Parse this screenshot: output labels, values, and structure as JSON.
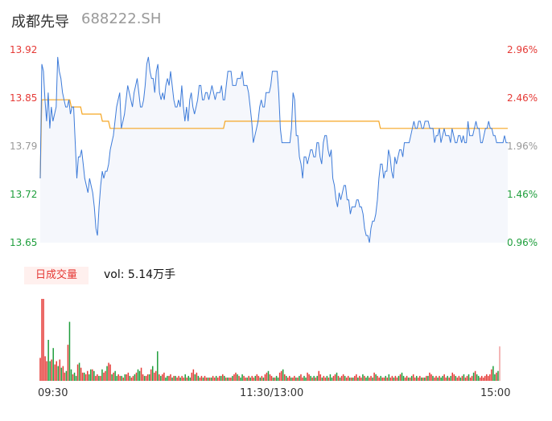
{
  "header": {
    "name": "成都先导",
    "code": "688222.SH"
  },
  "chart_data": {
    "type": "line",
    "price_axis": {
      "ticks": [
        "13.92",
        "13.85",
        "13.79",
        "13.72",
        "13.65"
      ],
      "range": [
        13.65,
        13.92
      ]
    },
    "pct_axis": {
      "ticks": [
        "2.96%",
        "2.46%",
        "1.96%",
        "1.46%",
        "0.96%"
      ]
    },
    "colors": {
      "up": "#e53935",
      "down": "#1e9e3c",
      "neutral": "#999999",
      "price_line": "#3d7bd9",
      "avg_line": "#f5a623"
    },
    "x_ticks": [
      "09:30",
      "11:30/13:00",
      "15:00"
    ],
    "price_series": [
      13.74,
      13.9,
      13.89,
      13.85,
      13.82,
      13.86,
      13.81,
      13.84,
      13.82,
      13.83,
      13.84,
      13.91,
      13.89,
      13.88,
      13.86,
      13.85,
      13.84,
      13.84,
      13.85,
      13.83,
      13.84,
      13.84,
      13.79,
      13.74,
      13.77,
      13.77,
      13.78,
      13.76,
      13.74,
      13.73,
      13.72,
      13.74,
      13.73,
      13.72,
      13.7,
      13.67,
      13.66,
      13.7,
      13.73,
      13.75,
      13.74,
      13.75,
      13.75,
      13.76,
      13.78,
      13.79,
      13.8,
      13.82,
      13.84,
      13.85,
      13.86,
      13.81,
      13.82,
      13.83,
      13.85,
      13.87,
      13.86,
      13.85,
      13.84,
      13.86,
      13.87,
      13.88,
      13.86,
      13.84,
      13.84,
      13.85,
      13.87,
      13.9,
      13.91,
      13.89,
      13.88,
      13.88,
      13.86,
      13.89,
      13.9,
      13.86,
      13.85,
      13.86,
      13.85,
      13.87,
      13.88,
      13.87,
      13.89,
      13.87,
      13.85,
      13.84,
      13.84,
      13.85,
      13.84,
      13.87,
      13.84,
      13.82,
      13.84,
      13.82,
      13.85,
      13.86,
      13.84,
      13.83,
      13.84,
      13.85,
      13.87,
      13.87,
      13.85,
      13.85,
      13.86,
      13.86,
      13.85,
      13.86,
      13.87,
      13.86,
      13.85,
      13.86,
      13.86,
      13.86,
      13.87,
      13.85,
      13.85,
      13.87,
      13.89,
      13.89,
      13.89,
      13.87,
      13.87,
      13.87,
      13.88,
      13.88,
      13.88,
      13.89,
      13.87,
      13.87,
      13.87,
      13.86,
      13.84,
      13.82,
      13.79,
      13.8,
      13.81,
      13.82,
      13.84,
      13.85,
      13.84,
      13.84,
      13.86,
      13.86,
      13.86,
      13.87,
      13.89,
      13.89,
      13.89,
      13.89,
      13.86,
      13.81,
      13.79,
      13.79,
      13.79,
      13.79,
      13.79,
      13.79,
      13.81,
      13.86,
      13.85,
      13.8,
      13.8,
      13.77,
      13.76,
      13.74,
      13.77,
      13.77,
      13.76,
      13.77,
      13.78,
      13.78,
      13.77,
      13.77,
      13.79,
      13.79,
      13.77,
      13.76,
      13.79,
      13.8,
      13.8,
      13.78,
      13.77,
      13.78,
      13.74,
      13.73,
      13.71,
      13.7,
      13.72,
      13.71,
      13.72,
      13.73,
      13.73,
      13.71,
      13.71,
      13.69,
      13.7,
      13.7,
      13.7,
      13.71,
      13.71,
      13.7,
      13.7,
      13.69,
      13.67,
      13.66,
      13.66,
      13.65,
      13.67,
      13.68,
      13.68,
      13.69,
      13.71,
      13.74,
      13.76,
      13.76,
      13.74,
      13.75,
      13.75,
      13.78,
      13.77,
      13.75,
      13.74,
      13.77,
      13.76,
      13.77,
      13.78,
      13.78,
      13.77,
      13.79,
      13.79,
      13.79,
      13.79,
      13.8,
      13.81,
      13.82,
      13.81,
      13.81,
      13.82,
      13.82,
      13.81,
      13.81,
      13.82,
      13.82,
      13.82,
      13.81,
      13.81,
      13.81,
      13.79,
      13.8,
      13.8,
      13.81,
      13.79,
      13.8,
      13.81,
      13.8,
      13.8,
      13.8,
      13.79,
      13.81,
      13.8,
      13.79,
      13.79,
      13.8,
      13.8,
      13.79,
      13.8,
      13.79,
      13.79,
      13.82,
      13.8,
      13.8,
      13.8,
      13.81,
      13.82,
      13.81,
      13.81,
      13.79,
      13.79,
      13.8,
      13.81,
      13.81,
      13.82,
      13.81,
      13.81,
      13.8,
      13.8,
      13.79,
      13.79,
      13.79,
      13.79,
      13.79,
      13.8,
      13.79,
      13.79
    ],
    "avg_series": [
      13.74,
      13.85,
      13.85,
      13.85,
      13.85,
      13.85,
      13.85,
      13.85,
      13.85,
      13.85,
      13.85,
      13.85,
      13.85,
      13.85,
      13.85,
      13.85,
      13.85,
      13.85,
      13.85,
      13.85,
      13.84,
      13.84,
      13.84,
      13.84,
      13.84,
      13.84,
      13.84,
      13.83,
      13.83,
      13.83,
      13.83,
      13.83,
      13.83,
      13.83,
      13.83,
      13.83,
      13.83,
      13.83,
      13.83,
      13.83,
      13.82,
      13.82,
      13.82,
      13.82,
      13.82,
      13.81,
      13.81,
      13.81,
      13.81,
      13.81,
      13.81,
      13.81,
      13.81,
      13.81,
      13.81,
      13.81,
      13.81,
      13.81,
      13.81,
      13.81,
      13.81,
      13.81,
      13.81,
      13.81,
      13.81,
      13.81,
      13.81,
      13.81,
      13.81,
      13.81,
      13.81,
      13.81,
      13.81,
      13.81,
      13.81,
      13.81,
      13.81,
      13.81,
      13.81,
      13.81,
      13.81,
      13.81,
      13.81,
      13.81,
      13.81,
      13.81,
      13.81,
      13.81,
      13.81,
      13.81,
      13.81,
      13.81,
      13.81,
      13.81,
      13.81,
      13.81,
      13.81,
      13.81,
      13.81,
      13.81,
      13.81,
      13.81,
      13.81,
      13.81,
      13.81,
      13.81,
      13.81,
      13.81,
      13.81,
      13.81,
      13.81,
      13.81,
      13.81,
      13.81,
      13.81,
      13.81,
      13.81,
      13.81,
      13.81,
      13.82,
      13.82,
      13.82,
      13.82,
      13.82,
      13.82,
      13.82,
      13.82,
      13.82,
      13.82,
      13.82,
      13.82,
      13.82,
      13.82,
      13.82,
      13.82,
      13.82,
      13.82,
      13.82,
      13.82,
      13.82,
      13.82,
      13.82,
      13.82,
      13.82,
      13.82,
      13.82,
      13.82,
      13.82,
      13.82,
      13.82,
      13.82,
      13.82,
      13.82,
      13.82,
      13.82,
      13.82,
      13.82,
      13.82,
      13.82,
      13.82,
      13.82,
      13.82,
      13.82,
      13.82,
      13.82,
      13.82,
      13.82,
      13.82,
      13.82,
      13.82,
      13.82,
      13.82,
      13.82,
      13.82,
      13.82,
      13.82,
      13.82,
      13.82,
      13.82,
      13.82,
      13.82,
      13.82,
      13.82,
      13.82,
      13.82,
      13.82,
      13.82,
      13.82,
      13.82,
      13.82,
      13.82,
      13.82,
      13.82,
      13.82,
      13.82,
      13.82,
      13.82,
      13.82,
      13.82,
      13.82,
      13.82,
      13.82,
      13.82,
      13.82,
      13.82,
      13.82,
      13.82,
      13.82,
      13.82,
      13.82,
      13.82,
      13.82,
      13.82,
      13.82,
      13.82,
      13.82,
      13.82,
      13.82,
      13.82,
      13.81,
      13.81,
      13.81,
      13.81,
      13.81,
      13.81,
      13.81,
      13.81,
      13.81,
      13.81,
      13.81,
      13.81,
      13.81,
      13.81,
      13.81,
      13.81,
      13.81,
      13.81,
      13.81,
      13.81,
      13.81,
      13.81,
      13.81,
      13.81,
      13.81,
      13.81,
      13.81,
      13.81,
      13.81,
      13.81,
      13.81,
      13.81,
      13.81,
      13.81,
      13.81,
      13.81,
      13.81,
      13.81,
      13.81,
      13.81,
      13.81,
      13.81,
      13.81,
      13.81,
      13.81,
      13.81,
      13.81,
      13.81,
      13.81,
      13.81,
      13.81,
      13.81,
      13.81,
      13.81,
      13.81,
      13.81,
      13.81,
      13.81,
      13.81,
      13.81,
      13.81,
      13.81,
      13.81,
      13.81,
      13.81,
      13.81,
      13.81,
      13.81,
      13.81,
      13.81,
      13.81,
      13.81,
      13.81,
      13.81,
      13.81,
      13.81,
      13.81,
      13.81,
      13.81,
      13.81,
      13.81,
      13.81,
      13.81
    ],
    "volume_label": "日成交量",
    "volume_text": "vol: 5.14万手",
    "volume_series": [
      28,
      100,
      100,
      30,
      24,
      50,
      24,
      26,
      40,
      20,
      24,
      18,
      26,
      16,
      18,
      10,
      12,
      44,
      72,
      14,
      8,
      10,
      6,
      20,
      22,
      16,
      10,
      10,
      8,
      12,
      8,
      14,
      14,
      12,
      6,
      8,
      6,
      6,
      14,
      10,
      12,
      18,
      22,
      20,
      8,
      10,
      12,
      6,
      8,
      6,
      6,
      4,
      8,
      8,
      10,
      6,
      4,
      6,
      8,
      10,
      14,
      12,
      16,
      8,
      6,
      6,
      8,
      8,
      14,
      18,
      10,
      12,
      36,
      8,
      6,
      8,
      10,
      4,
      6,
      6,
      8,
      4,
      6,
      6,
      4,
      6,
      4,
      6,
      4,
      8,
      4,
      6,
      4,
      10,
      14,
      8,
      10,
      6,
      4,
      6,
      4,
      6,
      4,
      4,
      4,
      4,
      6,
      4,
      6,
      4,
      6,
      6,
      8,
      6,
      4,
      4,
      4,
      4,
      6,
      8,
      10,
      8,
      6,
      4,
      8,
      6,
      4,
      4,
      6,
      4,
      6,
      4,
      6,
      8,
      6,
      4,
      6,
      4,
      8,
      10,
      12,
      8,
      6,
      4,
      4,
      6,
      4,
      10,
      12,
      14,
      8,
      6,
      4,
      6,
      4,
      4,
      6,
      4,
      4,
      6,
      8,
      4,
      6,
      4,
      10,
      8,
      6,
      4,
      6,
      4,
      6,
      12,
      8,
      4,
      6,
      4,
      6,
      4,
      8,
      4,
      6,
      8,
      10,
      6,
      4,
      6,
      8,
      6,
      4,
      6,
      4,
      4,
      4,
      6,
      8,
      4,
      6,
      4,
      8,
      6,
      4,
      6,
      4,
      6,
      4,
      10,
      8,
      6,
      4,
      6,
      4,
      4,
      6,
      4,
      8,
      4,
      6,
      4,
      6,
      4,
      6,
      8,
      10,
      6,
      4,
      6,
      4,
      4,
      6,
      8,
      4,
      6,
      4,
      6,
      4,
      4,
      4,
      6,
      6,
      10,
      8,
      6,
      4,
      6,
      4,
      6,
      4,
      6,
      8,
      4,
      6,
      4,
      6,
      10,
      8,
      6,
      4,
      6,
      4,
      6,
      8,
      4,
      6,
      8,
      4,
      6,
      10,
      12,
      8,
      6,
      4,
      6,
      4,
      6,
      8,
      6,
      8,
      14,
      18,
      8,
      10,
      12,
      42
    ],
    "volume_colors": "RRRRRGGRGRRGRGRRGRGGRGGRGRRGRRGGRGRRGRGRRGRRGRGGRRGRGRRGRRGRGGRRGRRGRGRRGRGRRGGRRGRGRRGRRGRGGRRGRGRRGRRGRGRRGRRGRGRGRRGRRGRGGRRGRGRRGRRGRGRRGRRGRGGRRGRGRRGRRGRGRRGGRRGRGRGRRGRRGRGGRRGRGRRGRRGRGRRGRRGRGGRRGRGRRGRRGRGRRGRRGRGGRRGRGRRGRRGRGRGRRGRRGRGGRRGRGRRGRRGRGRRGRRGRGGRRR"
  }
}
